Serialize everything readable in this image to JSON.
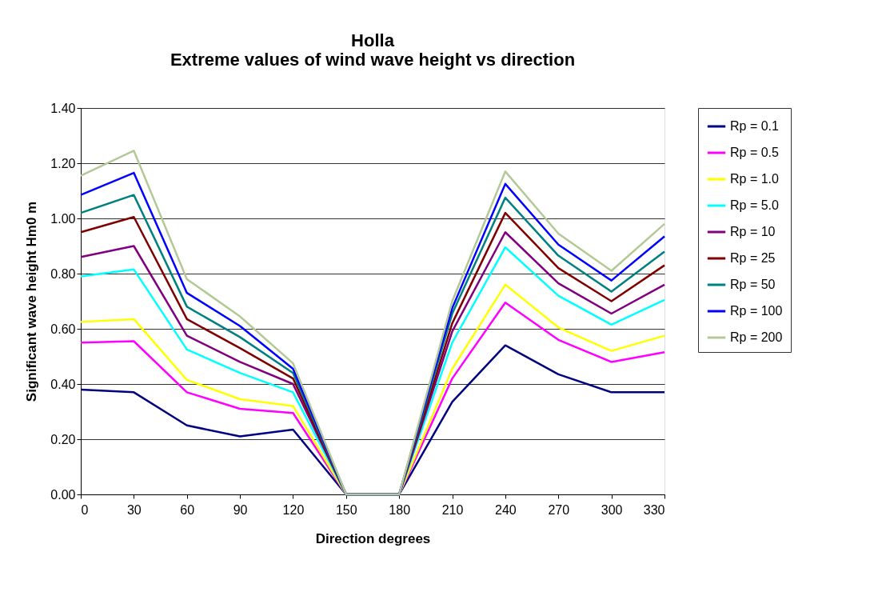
{
  "chart_data": {
    "type": "line",
    "title": "Holla",
    "subtitle": "Extreme values of wind wave height vs direction",
    "xlabel": "Direction degrees",
    "ylabel": "Significant wave height Hm0 m",
    "x": [
      0,
      30,
      60,
      90,
      120,
      150,
      180,
      210,
      240,
      270,
      300,
      330
    ],
    "xlim": [
      0,
      330
    ],
    "xticks": [
      0,
      30,
      60,
      90,
      120,
      150,
      180,
      210,
      240,
      270,
      300,
      330
    ],
    "ylim": [
      0,
      1.4
    ],
    "yticks": [
      {
        "value": 0,
        "label": "0.00"
      },
      {
        "value": 0.2,
        "label": "0.20"
      },
      {
        "value": 0.4,
        "label": "0.40"
      },
      {
        "value": 0.6,
        "label": "0.60"
      },
      {
        "value": 0.8,
        "label": "0.80"
      },
      {
        "value": 1.0,
        "label": "1.00"
      },
      {
        "value": 1.2,
        "label": "1.20"
      },
      {
        "value": 1.4,
        "label": "1.40"
      }
    ],
    "grid": "y",
    "legend": "right",
    "marker": "none",
    "line_style": "solid",
    "series": [
      {
        "name": "Rp = 0.1",
        "color": "#000080",
        "values": [
          0.38,
          0.37,
          0.25,
          0.21,
          0.235,
          0,
          0,
          0.335,
          0.54,
          0.435,
          0.37,
          0.37
        ]
      },
      {
        "name": "Rp = 0.5",
        "color": "#ff00ff",
        "values": [
          0.55,
          0.555,
          0.37,
          0.31,
          0.295,
          0,
          0,
          0.42,
          0.695,
          0.56,
          0.48,
          0.515
        ]
      },
      {
        "name": "Rp = 1.0",
        "color": "#ffff00",
        "values": [
          0.625,
          0.635,
          0.415,
          0.345,
          0.32,
          0,
          0,
          0.455,
          0.76,
          0.605,
          0.52,
          0.575
        ]
      },
      {
        "name": "Rp = 5.0",
        "color": "#00ffff",
        "values": [
          0.79,
          0.815,
          0.525,
          0.44,
          0.37,
          0,
          0,
          0.55,
          0.895,
          0.72,
          0.615,
          0.705
        ]
      },
      {
        "name": "Rp = 10",
        "color": "#800080",
        "values": [
          0.86,
          0.9,
          0.575,
          0.48,
          0.4,
          0,
          0,
          0.59,
          0.95,
          0.765,
          0.655,
          0.76
        ]
      },
      {
        "name": "Rp = 25",
        "color": "#800000",
        "values": [
          0.95,
          1.005,
          0.635,
          0.53,
          0.42,
          0,
          0,
          0.62,
          1.02,
          0.82,
          0.7,
          0.83
        ]
      },
      {
        "name": "Rp = 50",
        "color": "#008080",
        "values": [
          1.02,
          1.085,
          0.68,
          0.57,
          0.44,
          0,
          0,
          0.655,
          1.075,
          0.865,
          0.735,
          0.88
        ]
      },
      {
        "name": "Rp = 100",
        "color": "#0000ff",
        "values": [
          1.085,
          1.165,
          0.73,
          0.61,
          0.455,
          0,
          0,
          0.675,
          1.125,
          0.905,
          0.775,
          0.935
        ]
      },
      {
        "name": "Rp = 200",
        "color": "#b3c995",
        "values": [
          1.155,
          1.245,
          0.78,
          0.645,
          0.475,
          0,
          0,
          0.7,
          1.17,
          0.945,
          0.81,
          0.98
        ]
      }
    ]
  }
}
